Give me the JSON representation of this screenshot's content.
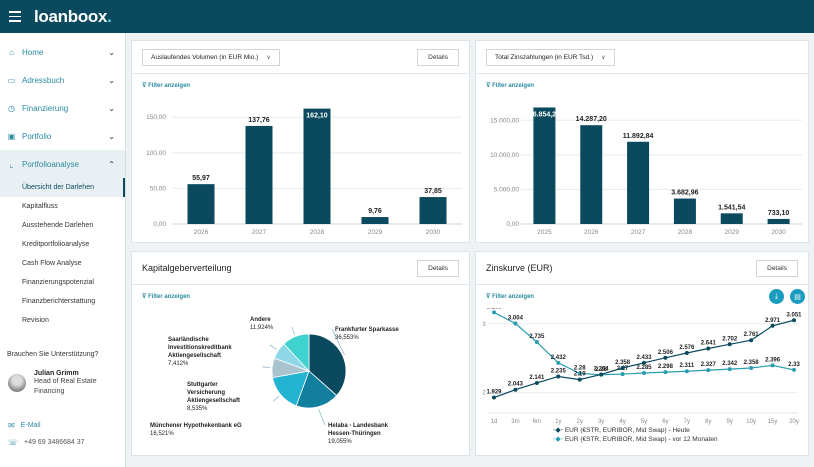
{
  "app": {
    "logo_text": "loanboox",
    "logo_dot": "."
  },
  "sidebar": {
    "items": [
      {
        "label": "Home",
        "icon": "home-icon",
        "glyph": "⌂"
      },
      {
        "label": "Adressbuch",
        "icon": "address-book-icon",
        "glyph": "▭"
      },
      {
        "label": "Finanzierung",
        "icon": "finance-icon",
        "glyph": "◷"
      },
      {
        "label": "Portfolio",
        "icon": "portfolio-icon",
        "glyph": "▣"
      },
      {
        "label": "Portfolioanalyse",
        "icon": "chart-icon",
        "glyph": "⌞"
      }
    ],
    "sub_items": [
      "Übersicht der Darlehen",
      "Kapitalfluss",
      "Ausstehende Darlehen",
      "Kreditportfolioanalyse",
      "Cash Flow Analyse",
      "Finanzierungspotenzial",
      "Finanzberichterstattung",
      "Revision"
    ],
    "help_label": "Brauchen Sie Unterstützung?",
    "contact": {
      "name": "Julian Grimm",
      "role_line1": "Head of Real Estate",
      "role_line2": "Financing",
      "email_label": "E-Mail",
      "phone": "+49 69 3486684 37"
    }
  },
  "panels": {
    "volume": {
      "dropdown": "Auslaufendes Volumen (in EUR Mio.)",
      "details": "Details",
      "filter": "Filter anzeigen"
    },
    "interest": {
      "dropdown": "Total Zinszahlungen (in EUR Tsd.)",
      "details": "Details",
      "filter": "Filter anzeigen"
    },
    "distribution": {
      "title": "Kapitalgeberverteilung",
      "details": "Details",
      "filter": "Filter anzeigen"
    },
    "curve": {
      "title": "Zinskurve (EUR)",
      "details": "Details",
      "filter": "Filter anzeigen",
      "legend": [
        "EUR (€STR, EURIBOR, Mid Swap) - Heute",
        "EUR (€STR, EURIBOR, Mid Swap) - vor 12 Monaten"
      ]
    }
  },
  "colors": {
    "brand": "#0b4a5e",
    "accent": "#2a8aa0",
    "bar": "#0b4a5e"
  },
  "chart_data": [
    {
      "type": "bar",
      "title": "Auslaufendes Volumen (in EUR Mio.)",
      "categories": [
        "2026",
        "2027",
        "2028",
        "2029",
        "2030"
      ],
      "values": [
        55.97,
        137.76,
        162.1,
        9.76,
        37.85
      ],
      "labels": [
        "55,97",
        "137,76",
        "162,10",
        "9,76",
        "37,85"
      ],
      "yticks": [
        "0,00",
        "50,00",
        "100,00",
        "150,00"
      ],
      "ylim": [
        0,
        170
      ],
      "grid": true
    },
    {
      "type": "bar",
      "title": "Total Zinszahlungen (in EUR Tsd.)",
      "categories": [
        "2025",
        "2026",
        "2027",
        "2028",
        "2029",
        "2030"
      ],
      "values": [
        16854.28,
        14287.2,
        11892.84,
        3682.96,
        1541.54,
        733.1
      ],
      "labels": [
        "16.854,28",
        "14.287,20",
        "11.892,84",
        "3.682,96",
        "1.541,54",
        "733,10"
      ],
      "yticks": [
        "0,00",
        "5.000,00",
        "10.000,00",
        "15.000,00"
      ],
      "ylim": [
        0,
        17500
      ],
      "grid": true
    },
    {
      "type": "pie",
      "title": "Kapitalgeberverteilung",
      "slices": [
        {
          "name": "Frankfurter Sparkasse",
          "value": 36.553,
          "label": "36,553%",
          "color": "#0b4a5e"
        },
        {
          "name": "Helaba - Landesbank Hessen-Thüringen",
          "value": 19.055,
          "label": "19,055%",
          "color": "#137f9e"
        },
        {
          "name": "Münchener Hypothekenbank eG",
          "value": 16.521,
          "label": "16,521%",
          "color": "#23b3d3"
        },
        {
          "name": "Stuttgarter Versicherung Aktiengesellschaft",
          "value": 8.535,
          "label": "8,535%",
          "color": "#a9c4cf"
        },
        {
          "name": "Saarländische Investitionskreditbank Aktiengesellschaft",
          "value": 7.412,
          "label": "7,412%",
          "color": "#8ed7e6"
        },
        {
          "name": "Andere",
          "value": 11.924,
          "label": "11,924%",
          "color": "#3fd2cf"
        }
      ]
    },
    {
      "type": "line",
      "title": "Zinskurve (EUR)",
      "x": [
        "1d",
        "3m",
        "6m",
        "1y",
        "2y",
        "3y",
        "4y",
        "5y",
        "6y",
        "7y",
        "8y",
        "9y",
        "10y",
        "15y",
        "20y"
      ],
      "series": [
        {
          "name": "EUR (€STR, EURIBOR, Mid Swap) - Heute",
          "color": "#0b4a5e",
          "values": [
            1.929,
            2.043,
            2.141,
            2.235,
            2.19,
            2.264,
            2.358,
            2.433,
            2.506,
            2.576,
            2.641,
            2.702,
            2.761,
            2.971,
            3.051
          ]
        },
        {
          "name": "EUR (€STR, EURIBOR, Mid Swap) - vor 12 Monaten",
          "color": "#2a9bb0",
          "values": [
            3.165,
            3.004,
            2.735,
            2.432,
            2.28,
            2.26,
            2.27,
            2.285,
            2.298,
            2.311,
            2.327,
            2.342,
            2.358,
            2.396,
            2.33
          ]
        }
      ],
      "yticks": [
        "2",
        "3"
      ],
      "ylim": [
        1.85,
        3.2
      ],
      "grid": true,
      "legend": "bottom"
    }
  ]
}
